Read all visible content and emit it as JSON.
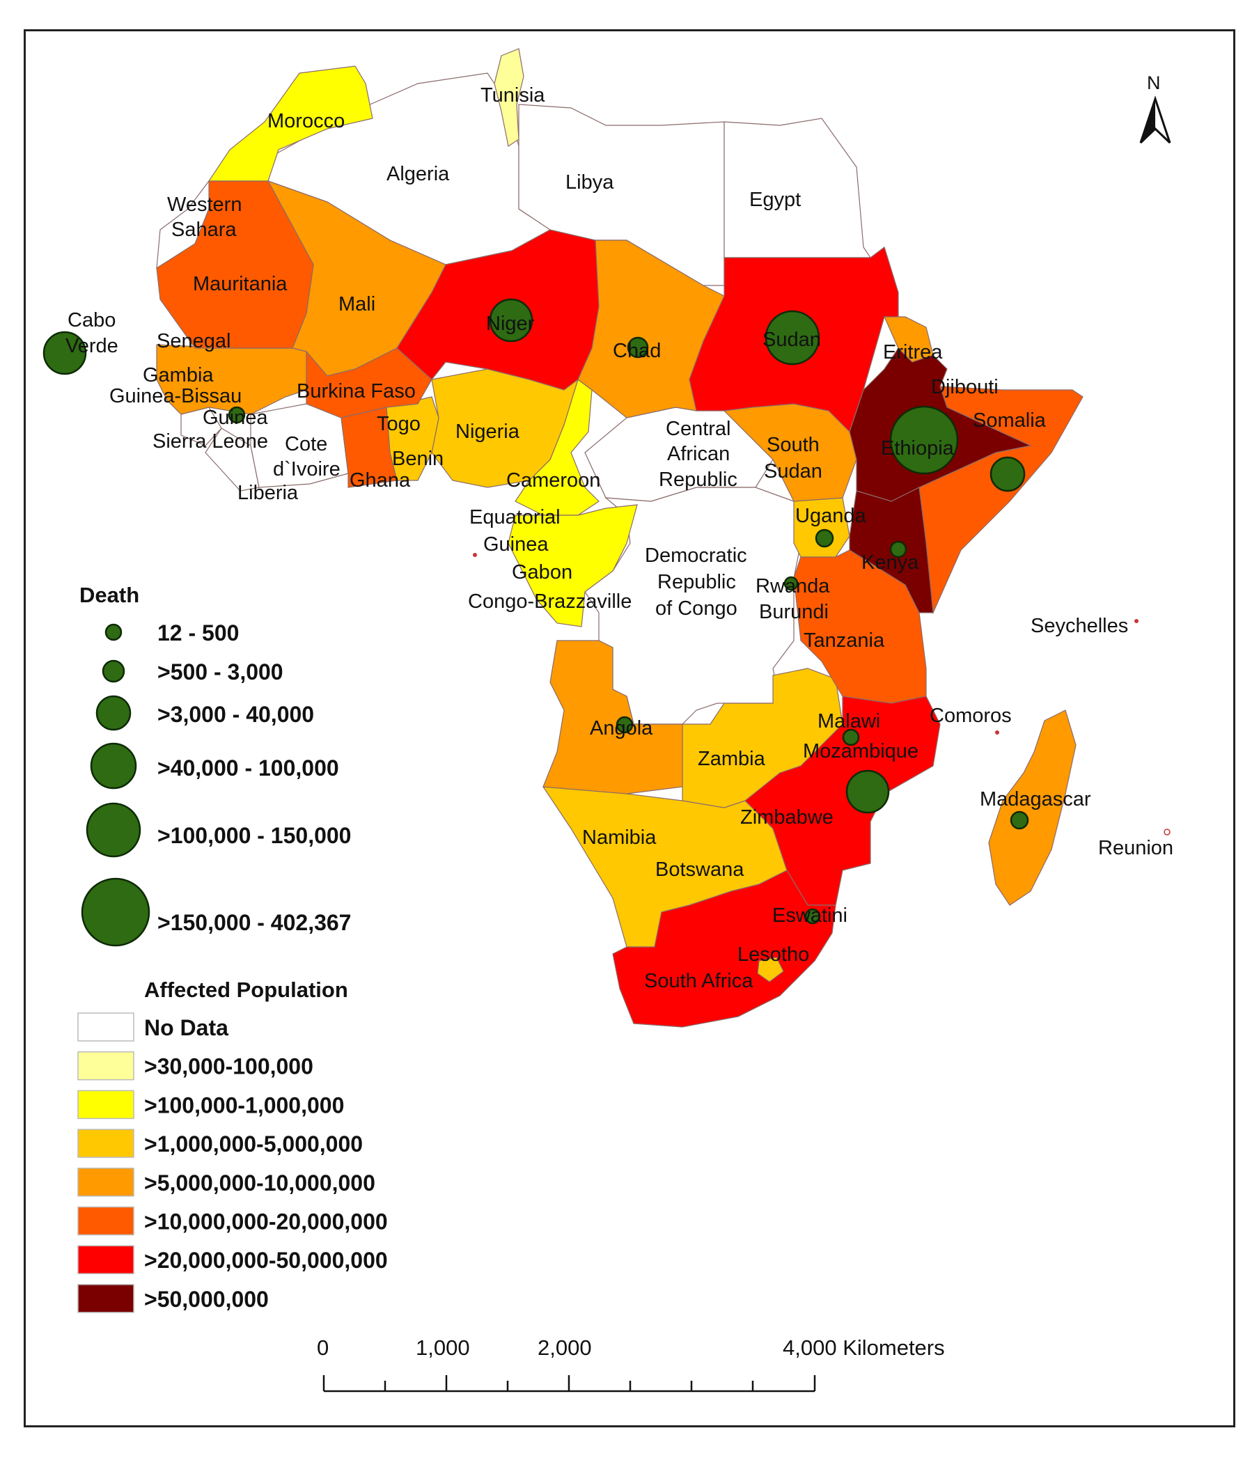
{
  "north_label": "N",
  "labels": {
    "tunisia": "Tunisia",
    "morocco": "Morocco",
    "algeria": "Algeria",
    "libya": "Libya",
    "egypt": "Egypt",
    "western_sahara_1": "Western",
    "western_sahara_2": "Sahara",
    "mauritania": "Mauritania",
    "mali": "Mali",
    "niger": "Niger",
    "chad": "Chad",
    "sudan": "Sudan",
    "eritrea": "Eritrea",
    "djibouti": "Djibouti",
    "somalia": "Somalia",
    "ethiopia": "Ethiopia",
    "cabo_1": "Cabo",
    "cabo_2": "Verde",
    "senegal": "Senegal",
    "gambia": "Gambia",
    "guinea_bissau": "Guinea-Bissau",
    "guinea": "Guinea",
    "sierra_leone": "Sierra Leone",
    "cote_1": "Cote",
    "cote_2": "d`Ivoire",
    "liberia": "Liberia",
    "burkina": "Burkina Faso",
    "togo": "Togo",
    "benin": "Benin",
    "ghana": "Ghana",
    "nigeria": "Nigeria",
    "car_1": "Central",
    "car_2": "African",
    "car_3": "Republic",
    "south_sudan_1": "South",
    "south_sudan_2": "Sudan",
    "cameroon": "Cameroon",
    "eq_guinea_1": "Equatorial",
    "eq_guinea_2": "Guinea",
    "gabon": "Gabon",
    "congo_brazzaville": "Congo-Brazzaville",
    "drc_1": "Democratic",
    "drc_2": "Republic",
    "drc_3": "of Congo",
    "uganda": "Uganda",
    "kenya": "Kenya",
    "rwanda": "Rwanda",
    "burundi": "Burundi",
    "tanzania": "Tanzania",
    "seychelles": "Seychelles",
    "angola": "Angola",
    "zambia": "Zambia",
    "malawi": "Malawi",
    "mozambique": "Mozambique",
    "comoros": "Comoros",
    "madagascar": "Madagascar",
    "zimbabwe": "Zimbabwe",
    "namibia": "Namibia",
    "botswana": "Botswana",
    "reunion": "Reunion",
    "eswatini": "Eswatini",
    "lesotho": "Lesotho",
    "south_africa": "South Africa"
  },
  "legend_death": {
    "title": "Death",
    "items": [
      "12 - 500",
      ">500 - 3,000",
      ">3,000 - 40,000",
      ">40,000 - 100,000",
      ">100,000 - 150,000",
      ">150,000 - 402,367"
    ]
  },
  "legend_affected": {
    "title": "Affected Population",
    "items": [
      {
        "label": "No Data",
        "color": "#ffffff"
      },
      {
        "label": ">30,000-100,000",
        "color": "#ffff99"
      },
      {
        "label": ">100,000-1,000,000",
        "color": "#ffff00"
      },
      {
        "label": ">1,000,000-5,000,000",
        "color": "#ffc800"
      },
      {
        "label": ">5,000,000-10,000,000",
        "color": "#ff9a00"
      },
      {
        "label": ">10,000,000-20,000,000",
        "color": "#ff5a00"
      },
      {
        "label": ">20,000,000-50,000,000",
        "color": "#ff0000"
      },
      {
        "label": ">50,000,000",
        "color": "#7a0000"
      }
    ]
  },
  "scale_bar": {
    "labels": [
      "0",
      "1,000",
      "2,000",
      "4,000 Kilometers"
    ]
  },
  "bubble_color": "#2e6b12"
}
